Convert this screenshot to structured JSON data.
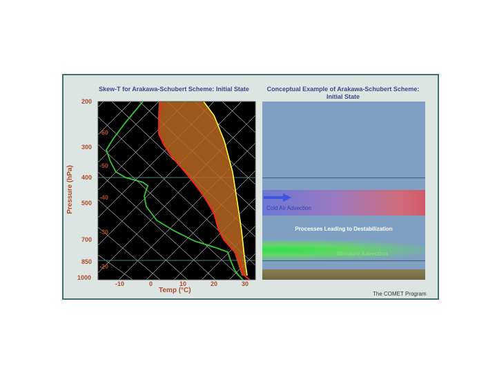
{
  "skewt": {
    "title": "Skew-T for Arakawa-Schubert Scheme: Initial State",
    "pressure_label": "Pressure (hPa)",
    "temp_label": "Temp (°C)",
    "pressure_ticks": [
      "200",
      "300",
      "400",
      "500",
      "700",
      "850",
      "1000"
    ],
    "isotherm_labels": [
      "-60",
      "-50",
      "-40",
      "-30",
      "-20"
    ],
    "temp_ticks": [
      "-10",
      "0",
      "10",
      "20",
      "30"
    ],
    "colors": {
      "background": "#000000",
      "temperature": "#ff2020",
      "dewpoint": "#37c837",
      "parcel": "#ffff40",
      "cape_fill": "#b8661e",
      "isobar": "#4c8c8c"
    }
  },
  "concept": {
    "title": "Conceptual Example of Arakawa-Schubert Scheme: Initial State",
    "cold_advection": "Cold Air Advection",
    "processes": "Processes Leading to Destabilization",
    "moisture_advection": "Moisture Advection"
  },
  "credit": "The COMET Program"
}
